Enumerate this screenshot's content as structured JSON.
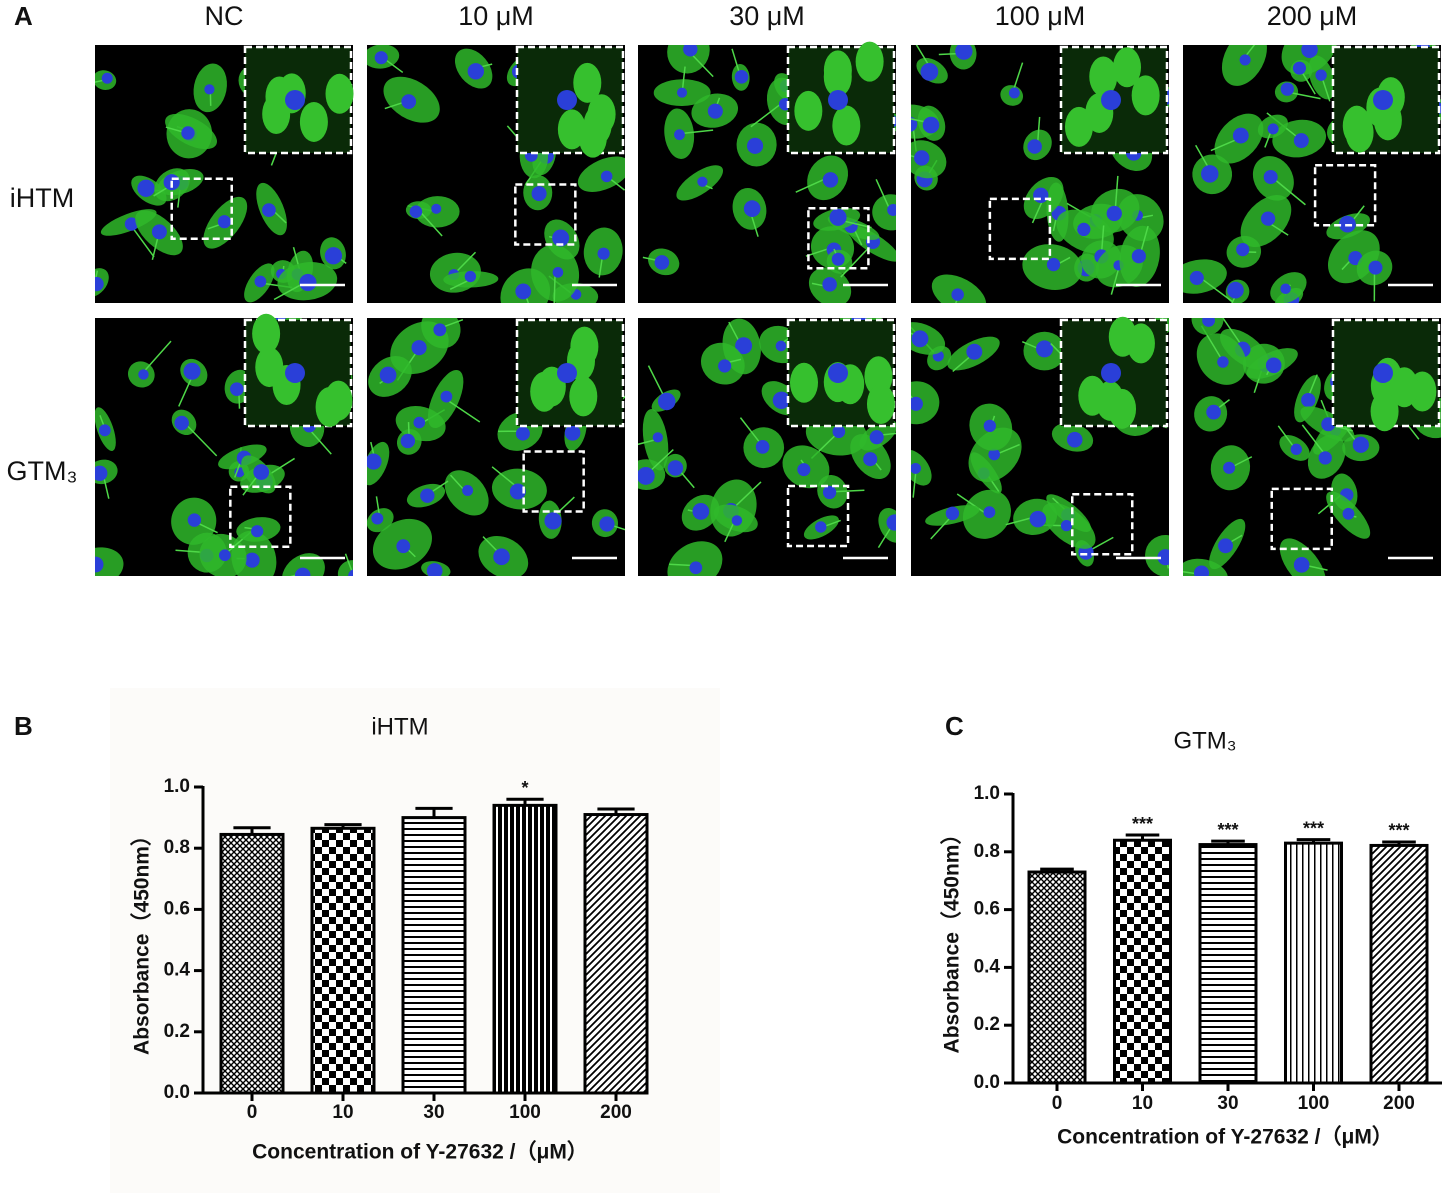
{
  "panel_a": {
    "label": "A",
    "columns": [
      "NC",
      "10 μM",
      "30 μM",
      "100 μM",
      "200 μM"
    ],
    "rows": [
      "iHTM",
      "GTM₃"
    ]
  },
  "chart_data": [
    {
      "type": "bar",
      "label": "B",
      "title": "iHTM",
      "x_label": "Concentration of Y-27632 /（μM）",
      "y_label": "Absorbance（450nm）",
      "categories": [
        "0",
        "10",
        "30",
        "100",
        "200"
      ],
      "values": [
        0.845,
        0.865,
        0.9,
        0.94,
        0.91
      ],
      "errors": [
        0.022,
        0.012,
        0.03,
        0.02,
        0.018
      ],
      "significance": [
        null,
        null,
        null,
        "*",
        null
      ],
      "patterns": [
        "crosshatch",
        "checker",
        "horizontal",
        "vertical-dense",
        "diagonal"
      ],
      "ylim": [
        0,
        1.0
      ],
      "yticks": [
        {
          "value": 0,
          "label": "0.0"
        },
        0.2,
        0.4,
        0.6,
        0.8,
        {
          "value": 1.0,
          "label": "1.0"
        }
      ]
    },
    {
      "type": "bar",
      "label": "C",
      "title": "GTM₃",
      "x_label": "Concentration of Y-27632 /（μM）",
      "y_label": "Absorbance（450nm）",
      "categories": [
        "0",
        "10",
        "30",
        "100",
        "200"
      ],
      "values": [
        0.73,
        0.84,
        0.825,
        0.83,
        0.822
      ],
      "errors": [
        0.01,
        0.018,
        0.012,
        0.012,
        0.012
      ],
      "significance": [
        null,
        "***",
        "***",
        "***",
        "***"
      ],
      "patterns": [
        "crosshatch",
        "checker",
        "horizontal",
        "vertical",
        "diagonal"
      ],
      "ylim": [
        0,
        1.0
      ],
      "yticks": [
        {
          "value": 0,
          "label": "0.0"
        },
        0.2,
        0.4,
        0.6,
        0.8,
        {
          "value": 1.0,
          "label": "1.0"
        }
      ]
    }
  ]
}
